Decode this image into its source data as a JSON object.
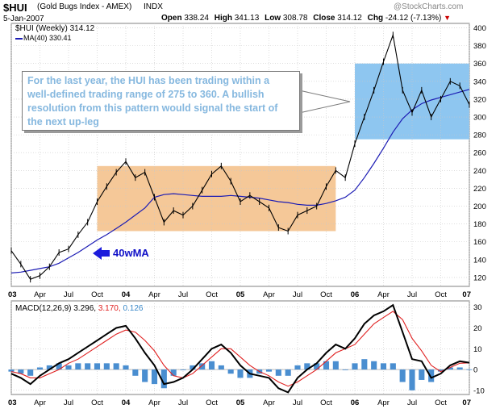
{
  "header": {
    "symbol": "$HUI",
    "name": "(Gold Bugs Index - AMEX)",
    "exchange": "INDX",
    "watermark": "@StockCharts.com",
    "date": "5-Jan-2007",
    "open_label": "Open",
    "open": "338.24",
    "high_label": "High",
    "high": "341.13",
    "low_label": "Low",
    "low": "308.78",
    "close_label": "Close",
    "close": "314.12",
    "chg_label": "Chg",
    "chg": "-24.12 (-7.13%)",
    "down_arrow": "▼"
  },
  "legend": {
    "price": "$HUI (Weekly) 314.12",
    "ma": "MA(40) 330.41",
    "macd_prefix": "MACD(12,26,9)",
    "macd_v1": "3.296,",
    "macd_v2": "3.170,",
    "macd_v3": "0.126"
  },
  "annotations": {
    "text": "For the last year, the HUI has been trading within a well-defined trading range of 275 to 360. A bullish resolution from this pattern would signal the start of the next up-leg",
    "ma_label": "40wMA"
  },
  "colors": {
    "price": "#000000",
    "ma": "#1c1cb4",
    "box_orange": "#f5c898",
    "box_blue": "#8ec6f0",
    "macd": "#000000",
    "signal": "#e02020",
    "histogram": "#4a8ed0",
    "annotation_text": "#86b8df",
    "ma_label": "#1010c8",
    "arrow": "#1c1cdc",
    "down": "#cc0000"
  },
  "chart_data": [
    {
      "type": "line",
      "name": "$HUI weekly price with 40-week MA",
      "ylim": [
        110,
        405
      ],
      "y_ticks": [
        120,
        140,
        160,
        180,
        200,
        220,
        240,
        260,
        280,
        300,
        320,
        340,
        360,
        380,
        400
      ],
      "x_tick_labels": [
        "03",
        "Apr",
        "Jul",
        "Oct",
        "04",
        "Apr",
        "Jul",
        "Oct",
        "05",
        "Apr",
        "Jul",
        "Oct",
        "06",
        "Apr",
        "Jul",
        "Oct",
        "07"
      ],
      "x_ticks_bold": [
        "03",
        "04",
        "05",
        "06",
        "07"
      ],
      "x_start": "2003-01",
      "x_end": "2007-01",
      "months": [
        "2003-01",
        "2003-02",
        "2003-03",
        "2003-04",
        "2003-05",
        "2003-06",
        "2003-07",
        "2003-08",
        "2003-09",
        "2003-10",
        "2003-11",
        "2003-12",
        "2004-01",
        "2004-02",
        "2004-03",
        "2004-04",
        "2004-05",
        "2004-06",
        "2004-07",
        "2004-08",
        "2004-09",
        "2004-10",
        "2004-11",
        "2004-12",
        "2005-01",
        "2005-02",
        "2005-03",
        "2005-04",
        "2005-05",
        "2005-06",
        "2005-07",
        "2005-08",
        "2005-09",
        "2005-10",
        "2005-11",
        "2005-12",
        "2006-01",
        "2006-02",
        "2006-03",
        "2006-04",
        "2006-05",
        "2006-06",
        "2006-07",
        "2006-08",
        "2006-09",
        "2006-10",
        "2006-11",
        "2006-12",
        "2007-01"
      ],
      "price": [
        150,
        135,
        118,
        122,
        132,
        148,
        152,
        168,
        182,
        205,
        222,
        238,
        250,
        232,
        238,
        210,
        182,
        195,
        190,
        200,
        218,
        236,
        245,
        228,
        205,
        212,
        205,
        198,
        176,
        172,
        190,
        195,
        200,
        222,
        240,
        232,
        270,
        300,
        330,
        362,
        392,
        330,
        305,
        330,
        300,
        320,
        340,
        335,
        314
      ],
      "ma40": [
        125,
        126,
        128,
        130,
        132,
        136,
        142,
        148,
        155,
        162,
        168,
        175,
        182,
        190,
        198,
        210,
        213,
        214,
        213,
        212,
        211,
        211,
        211,
        212,
        211,
        210,
        209,
        207,
        205,
        204,
        202,
        201,
        201,
        203,
        206,
        210,
        218,
        232,
        248,
        265,
        283,
        298,
        308,
        315,
        319,
        322,
        325,
        328,
        331
      ],
      "range_boxes": [
        {
          "from": "2003-10",
          "to": "2005-11",
          "low": 172,
          "high": 245
        },
        {
          "from": "2006-01",
          "to": "2007-01",
          "low": 275,
          "high": 360
        }
      ]
    },
    {
      "type": "line",
      "name": "MACD(12,26,9)",
      "ylim": [
        -12,
        33
      ],
      "y_ticks": [
        -10,
        0,
        10,
        20,
        30
      ],
      "x_tick_labels": [
        "03",
        "Apr",
        "Jul",
        "Oct",
        "04",
        "Apr",
        "Jul",
        "Oct",
        "05",
        "Apr",
        "Jul",
        "Oct",
        "06",
        "Apr",
        "Jul",
        "Oct",
        "07"
      ],
      "months": [
        "2003-01",
        "2003-02",
        "2003-03",
        "2003-04",
        "2003-05",
        "2003-06",
        "2003-07",
        "2003-08",
        "2003-09",
        "2003-10",
        "2003-11",
        "2003-12",
        "2004-01",
        "2004-02",
        "2004-03",
        "2004-04",
        "2004-05",
        "2004-06",
        "2004-07",
        "2004-08",
        "2004-09",
        "2004-10",
        "2004-11",
        "2004-12",
        "2005-01",
        "2005-02",
        "2005-03",
        "2005-04",
        "2005-05",
        "2005-06",
        "2005-07",
        "2005-08",
        "2005-09",
        "2005-10",
        "2005-11",
        "2005-12",
        "2006-01",
        "2006-02",
        "2006-03",
        "2006-04",
        "2006-05",
        "2006-06",
        "2006-07",
        "2006-08",
        "2006-09",
        "2006-10",
        "2006-11",
        "2006-12",
        "2007-01"
      ],
      "macd": [
        -2,
        -4,
        -7,
        -3,
        0,
        3,
        5,
        8,
        11,
        14,
        17,
        20,
        21,
        15,
        8,
        2,
        -7,
        -6,
        -4,
        0,
        5,
        10,
        12,
        8,
        2,
        -2,
        -3,
        -4,
        -9,
        -11,
        -4,
        0,
        3,
        8,
        12,
        10,
        15,
        22,
        26,
        28,
        31,
        18,
        5,
        4,
        -4,
        -2,
        2,
        4,
        3.3
      ],
      "signal": [
        -1,
        -2,
        -4,
        -4,
        -2,
        0,
        3,
        5,
        8,
        11,
        14,
        17,
        19,
        18,
        14,
        9,
        2,
        -3,
        -4,
        -2,
        2,
        6,
        10,
        10,
        6,
        2,
        -1,
        -3,
        -6,
        -8,
        -6,
        -3,
        0,
        4,
        8,
        10,
        12,
        17,
        22,
        25,
        28,
        24,
        15,
        9,
        2,
        -1,
        1,
        3,
        3.2
      ]
    }
  ]
}
